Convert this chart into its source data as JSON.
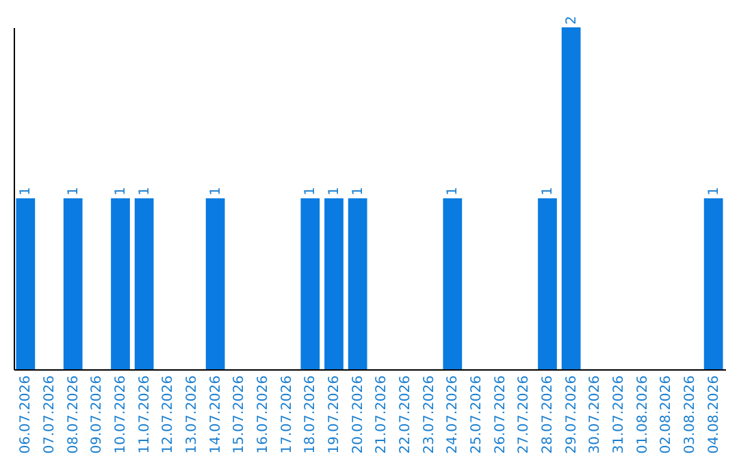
{
  "chart_data": {
    "type": "bar",
    "categories": [
      "06.07.2026",
      "07.07.2026",
      "08.07.2026",
      "09.07.2026",
      "10.07.2026",
      "11.07.2026",
      "12.07.2026",
      "13.07.2026",
      "14.07.2026",
      "15.07.2026",
      "16.07.2026",
      "17.07.2026",
      "18.07.2026",
      "19.07.2026",
      "20.07.2026",
      "21.07.2026",
      "22.07.2026",
      "23.07.2026",
      "24.07.2026",
      "25.07.2026",
      "26.07.2026",
      "27.07.2026",
      "28.07.2026",
      "29.07.2026",
      "30.07.2026",
      "31.07.2026",
      "01.08.2026",
      "02.08.2026",
      "03.08.2026",
      "04.08.2026"
    ],
    "values": [
      1,
      0,
      1,
      0,
      1,
      1,
      0,
      0,
      1,
      0,
      0,
      0,
      1,
      1,
      1,
      0,
      0,
      0,
      1,
      0,
      0,
      0,
      1,
      2,
      0,
      0,
      0,
      0,
      0,
      1
    ],
    "value_labels": [
      "1",
      null,
      "1",
      null,
      "1",
      "1",
      null,
      null,
      "1",
      null,
      null,
      null,
      "1",
      "1",
      "1",
      null,
      null,
      null,
      "1",
      null,
      null,
      null,
      "1",
      "2",
      null,
      null,
      null,
      null,
      null,
      "1"
    ],
    "color": "#0a7be0"
  }
}
